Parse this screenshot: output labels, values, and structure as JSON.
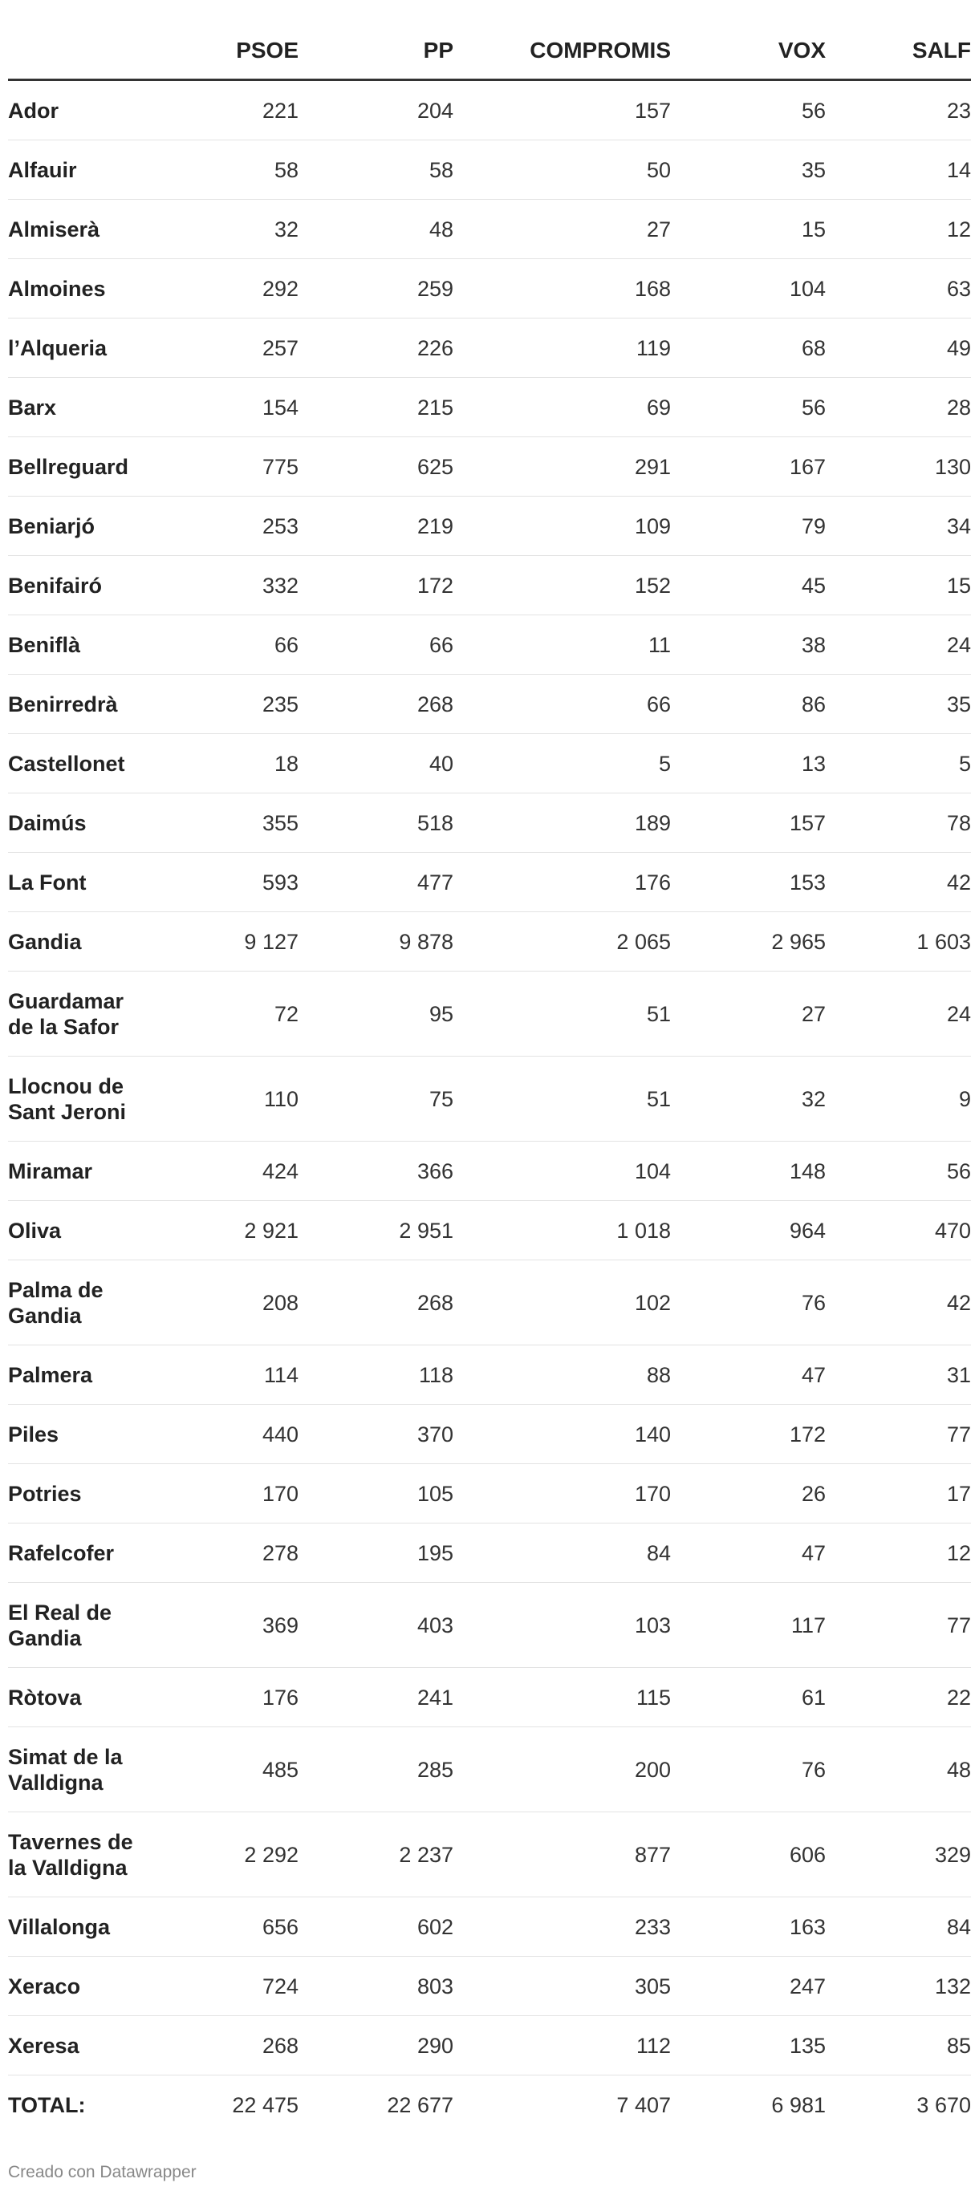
{
  "chart_data": {
    "type": "table",
    "columns": [
      "",
      "PSOE",
      "PP",
      "COMPROMIS",
      "VOX",
      "SALF"
    ],
    "rows": [
      {
        "name": [
          "Ador"
        ],
        "values": [
          "221",
          "204",
          "157",
          "56",
          "23"
        ]
      },
      {
        "name": [
          "Alfauir"
        ],
        "values": [
          "58",
          "58",
          "50",
          "35",
          "14"
        ]
      },
      {
        "name": [
          "Almiserà"
        ],
        "values": [
          "32",
          "48",
          "27",
          "15",
          "12"
        ]
      },
      {
        "name": [
          "Almoines"
        ],
        "values": [
          "292",
          "259",
          "168",
          "104",
          "63"
        ]
      },
      {
        "name": [
          "l’Alqueria"
        ],
        "values": [
          "257",
          "226",
          "119",
          "68",
          "49"
        ]
      },
      {
        "name": [
          "Barx"
        ],
        "values": [
          "154",
          "215",
          "69",
          "56",
          "28"
        ]
      },
      {
        "name": [
          "Bellreguard"
        ],
        "values": [
          "775",
          "625",
          "291",
          "167",
          "130"
        ]
      },
      {
        "name": [
          "Beniarjó"
        ],
        "values": [
          "253",
          "219",
          "109",
          "79",
          "34"
        ]
      },
      {
        "name": [
          "Benifairó"
        ],
        "values": [
          "332",
          "172",
          "152",
          "45",
          "15"
        ]
      },
      {
        "name": [
          "Beniflà"
        ],
        "values": [
          "66",
          "66",
          "11",
          "38",
          "24"
        ]
      },
      {
        "name": [
          "Benirredrà"
        ],
        "values": [
          "235",
          "268",
          "66",
          "86",
          "35"
        ]
      },
      {
        "name": [
          "Castellonet"
        ],
        "values": [
          "18",
          "40",
          "5",
          "13",
          "5"
        ]
      },
      {
        "name": [
          "Daimús"
        ],
        "values": [
          "355",
          "518",
          "189",
          "157",
          "78"
        ]
      },
      {
        "name": [
          "La Font"
        ],
        "values": [
          "593",
          "477",
          "176",
          "153",
          "42"
        ]
      },
      {
        "name": [
          "Gandia"
        ],
        "values": [
          "9 127",
          "9 878",
          "2 065",
          "2 965",
          "1 603"
        ]
      },
      {
        "name": [
          "Guardamar",
          "de la Safor"
        ],
        "values": [
          "72",
          "95",
          "51",
          "27",
          "24"
        ]
      },
      {
        "name": [
          "Llocnou de",
          "Sant Jeroni"
        ],
        "values": [
          "110",
          "75",
          "51",
          "32",
          "9"
        ]
      },
      {
        "name": [
          "Miramar"
        ],
        "values": [
          "424",
          "366",
          "104",
          "148",
          "56"
        ]
      },
      {
        "name": [
          "Oliva"
        ],
        "values": [
          "2 921",
          "2 951",
          "1 018",
          "964",
          "470"
        ]
      },
      {
        "name": [
          "Palma de",
          "Gandia"
        ],
        "values": [
          "208",
          "268",
          "102",
          "76",
          "42"
        ]
      },
      {
        "name": [
          "Palmera"
        ],
        "values": [
          "114",
          "118",
          "88",
          "47",
          "31"
        ]
      },
      {
        "name": [
          "Piles"
        ],
        "values": [
          "440",
          "370",
          "140",
          "172",
          "77"
        ]
      },
      {
        "name": [
          "Potries"
        ],
        "values": [
          "170",
          "105",
          "170",
          "26",
          "17"
        ]
      },
      {
        "name": [
          "Rafelcofer"
        ],
        "values": [
          "278",
          "195",
          "84",
          "47",
          "12"
        ]
      },
      {
        "name": [
          "El Real de",
          "Gandia"
        ],
        "values": [
          "369",
          "403",
          "103",
          "117",
          "77"
        ]
      },
      {
        "name": [
          "Ròtova"
        ],
        "values": [
          "176",
          "241",
          "115",
          "61",
          "22"
        ]
      },
      {
        "name": [
          "Simat de la",
          "Valldigna"
        ],
        "values": [
          "485",
          "285",
          "200",
          "76",
          "48"
        ]
      },
      {
        "name": [
          "Tavernes de",
          "la Valldigna"
        ],
        "values": [
          "2 292",
          "2 237",
          "877",
          "606",
          "329"
        ]
      },
      {
        "name": [
          "Villalonga"
        ],
        "values": [
          "656",
          "602",
          "233",
          "163",
          "84"
        ]
      },
      {
        "name": [
          "Xeraco"
        ],
        "values": [
          "724",
          "803",
          "305",
          "247",
          "132"
        ]
      },
      {
        "name": [
          "Xeresa"
        ],
        "values": [
          "268",
          "290",
          "112",
          "135",
          "85"
        ]
      }
    ],
    "total": {
      "name": "TOTAL:",
      "values": [
        "22 475",
        "22 677",
        "7 407",
        "6 981",
        "3 670"
      ]
    }
  },
  "footer": {
    "credit": "Creado con Datawrapper"
  }
}
